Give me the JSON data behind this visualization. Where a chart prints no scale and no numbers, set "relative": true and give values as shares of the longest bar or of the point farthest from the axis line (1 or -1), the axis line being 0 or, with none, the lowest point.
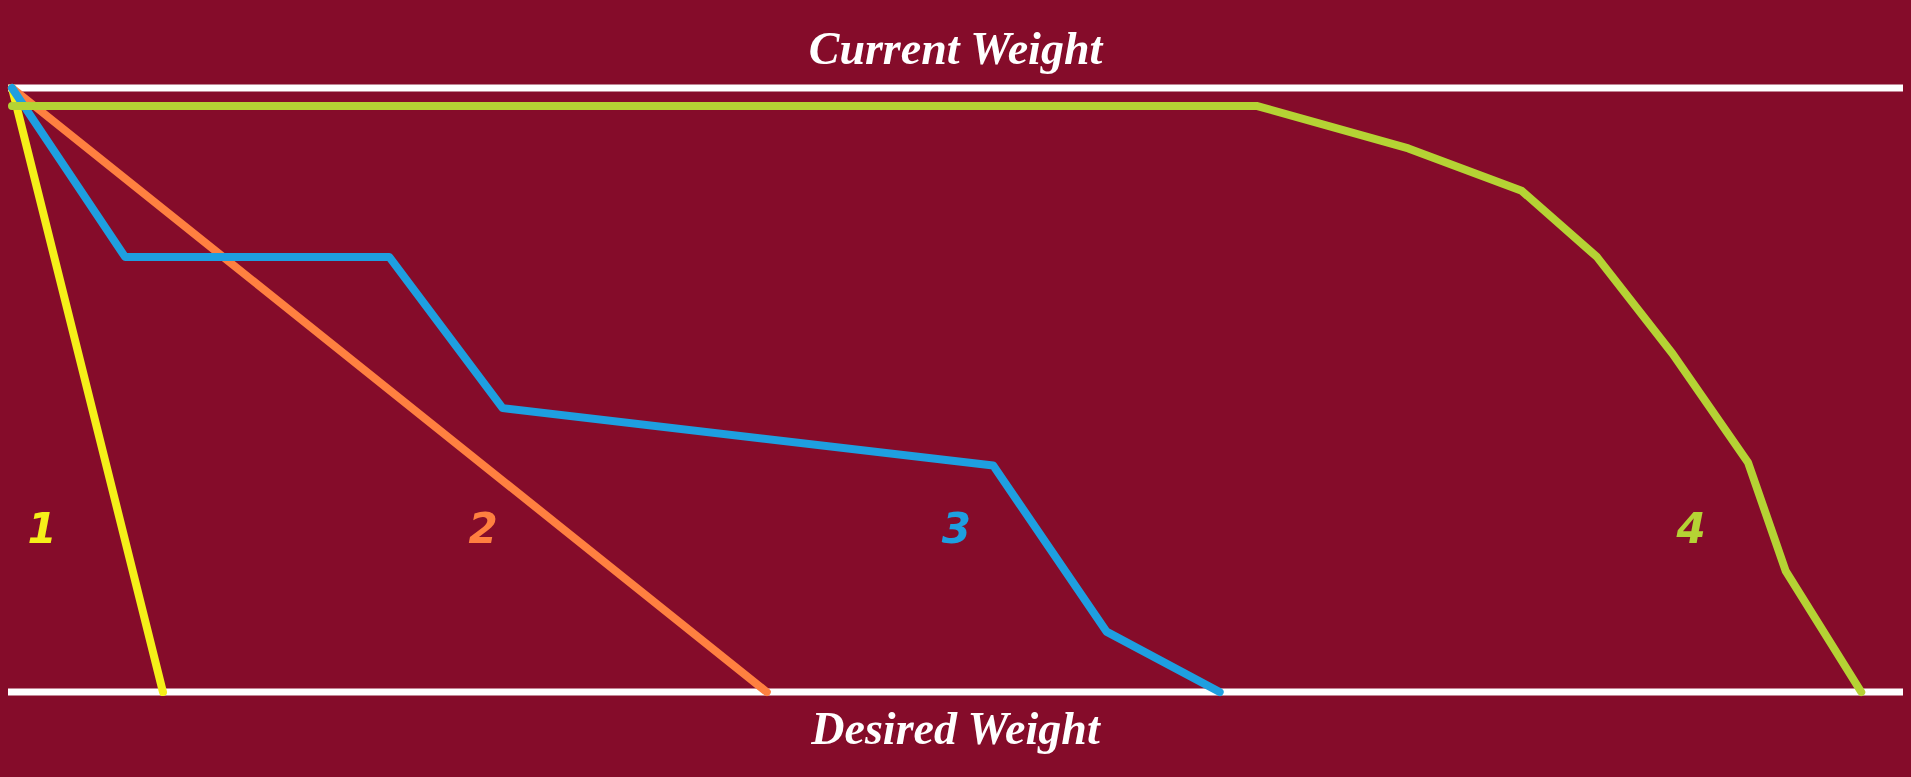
{
  "chart_data": {
    "type": "line",
    "relative": true,
    "title": "Current Weight",
    "xlabel": "Desired Weight",
    "categories": [
      null,
      null,
      null,
      null,
      null,
      null,
      null,
      null,
      null,
      null,
      null,
      null,
      null,
      null,
      null,
      null,
      null,
      null,
      null,
      null,
      null,
      null,
      null,
      null,
      null,
      null,
      null,
      null,
      null,
      null,
      null,
      null,
      null,
      null,
      null,
      null,
      null,
      null,
      null,
      null,
      null,
      null,
      null,
      null,
      null,
      null,
      null,
      null,
      null,
      null,
      null
    ],
    "series": [
      {
        "name": "1",
        "color": "#f5f019",
        "values": [
          1,
          null,
          null,
          null,
          0,
          null,
          null,
          null,
          null,
          null,
          null,
          null,
          null,
          null,
          null,
          null,
          null,
          null,
          null,
          null,
          null,
          null,
          null,
          null,
          null,
          null,
          null,
          null,
          null,
          null,
          null,
          null,
          null,
          null,
          null,
          null,
          null,
          null,
          null,
          null,
          null,
          null,
          null,
          null,
          null,
          null,
          null,
          null,
          null,
          null,
          null
        ]
      },
      {
        "name": "2",
        "color": "#ff8040",
        "values": [
          1,
          null,
          null,
          null,
          null,
          null,
          null,
          null,
          null,
          null,
          null,
          null,
          null,
          null,
          null,
          null,
          null,
          null,
          null,
          null,
          0,
          null,
          null,
          null,
          null,
          null,
          null,
          null,
          null,
          null,
          null,
          null,
          null,
          null,
          null,
          null,
          null,
          null,
          null,
          null,
          null,
          null,
          null,
          null,
          null,
          null,
          null,
          null,
          null,
          null,
          null
        ]
      },
      {
        "name": "3",
        "color": "#1e9fe0",
        "values": [
          1,
          null,
          null,
          0.72,
          null,
          null,
          null,
          null,
          null,
          null,
          0.72,
          null,
          null,
          0.47,
          null,
          null,
          null,
          null,
          null,
          null,
          null,
          null,
          null,
          null,
          null,
          null,
          0.375,
          null,
          null,
          0.1,
          null,
          null,
          0,
          null,
          null,
          null,
          null,
          null,
          null,
          null,
          null,
          null,
          null,
          null,
          null,
          null,
          null,
          null,
          null,
          null,
          null
        ]
      },
      {
        "name": "4",
        "color": "#b5d334",
        "values": [
          0.97,
          null,
          null,
          null,
          null,
          null,
          null,
          null,
          null,
          null,
          null,
          null,
          null,
          null,
          null,
          null,
          null,
          null,
          null,
          null,
          null,
          null,
          null,
          null,
          null,
          null,
          null,
          null,
          null,
          null,
          null,
          null,
          null,
          0.97,
          null,
          null,
          null,
          0.9,
          null,
          null,
          0.83,
          null,
          0.72,
          null,
          0.56,
          null,
          0.38,
          0.2,
          null,
          0,
          null
        ]
      }
    ],
    "marker": "none",
    "line_style": "solid",
    "legend": false
  }
}
